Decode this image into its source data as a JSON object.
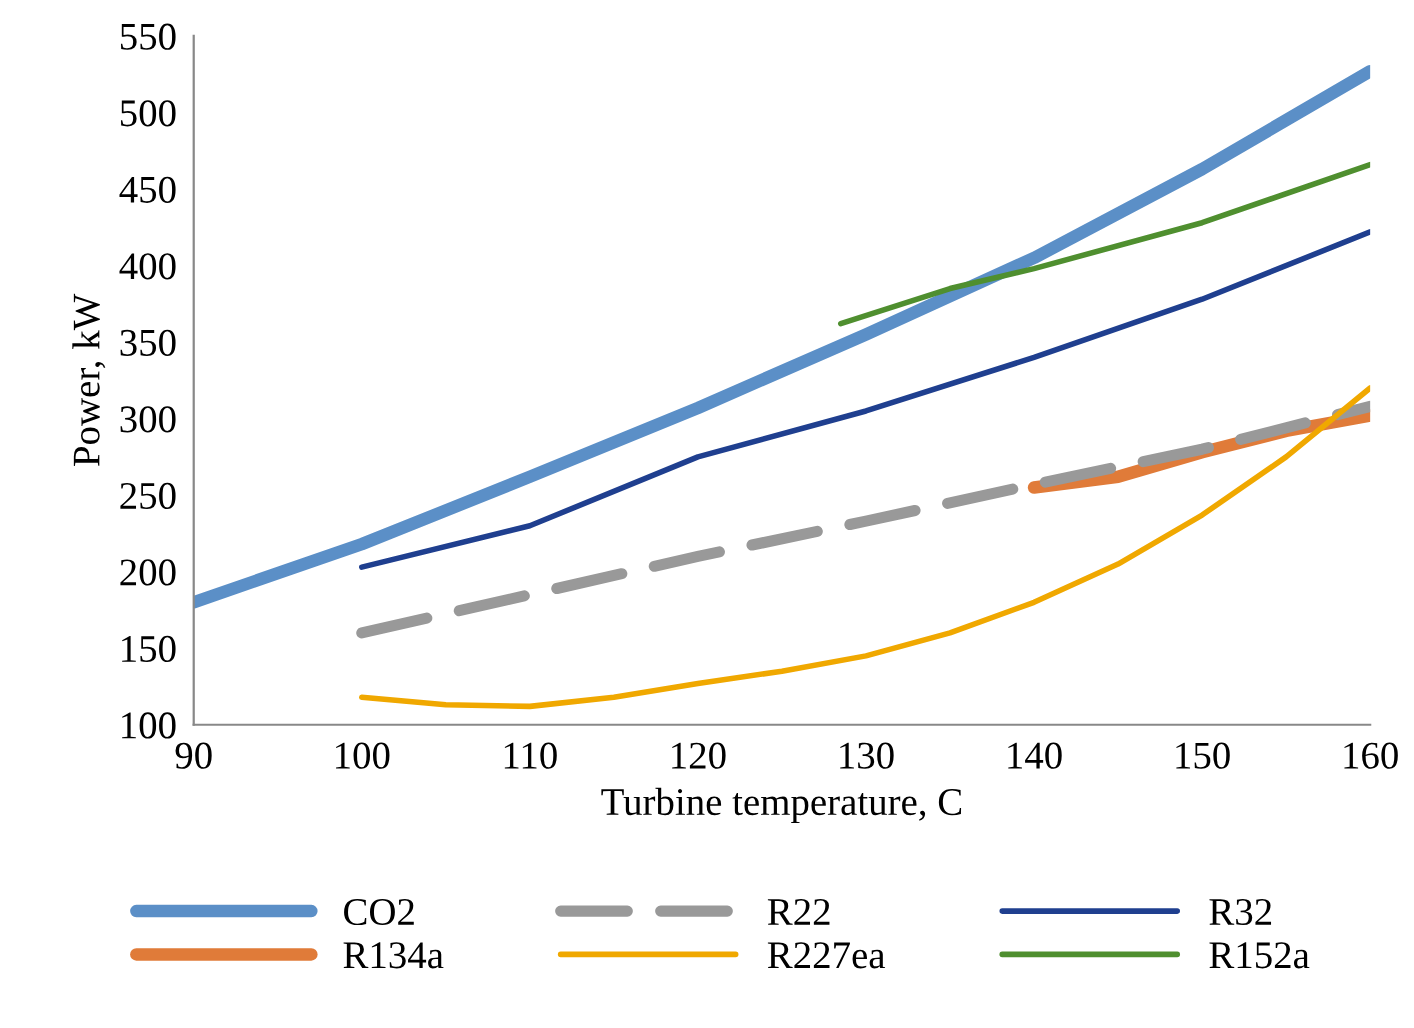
{
  "chart_data": {
    "type": "line",
    "xlabel": "Turbine temperature, C",
    "ylabel": "Power, kW",
    "xlim": [
      90,
      160
    ],
    "xticks": [
      90,
      100,
      110,
      120,
      130,
      140,
      150,
      160
    ],
    "ylim": [
      100,
      550
    ],
    "yticks": [
      100,
      150,
      200,
      250,
      300,
      350,
      400,
      450,
      500,
      550
    ],
    "grid": false,
    "legend": "bottom",
    "marker": "none",
    "series": [
      {
        "name": "CO2",
        "color": "#5b8fc7",
        "line_style": "solid",
        "x": [
          90,
          100,
          110,
          120,
          130,
          140,
          150,
          160
        ],
        "values": [
          180,
          218,
          262,
          307,
          355,
          405,
          463,
          527
        ]
      },
      {
        "name": "R134a",
        "color": "#e07b39",
        "line_style": "solid",
        "x": [
          140,
          145,
          150,
          155,
          160
        ],
        "values": [
          255,
          262,
          278,
          292,
          302
        ]
      },
      {
        "name": "R22",
        "color": "#999999",
        "line_style": "dashed",
        "x": [
          100,
          110,
          120,
          130,
          140,
          150,
          160
        ],
        "values": [
          160,
          185,
          210,
          233,
          257,
          280,
          308
        ]
      },
      {
        "name": "R227ea",
        "color": "#f0a800",
        "line_style": "solid",
        "x": [
          100,
          105,
          110,
          115,
          120,
          125,
          130,
          135,
          140,
          145,
          150,
          155,
          160
        ],
        "values": [
          118,
          113,
          112,
          118,
          127,
          135,
          145,
          160,
          180,
          205,
          237,
          275,
          320
        ]
      },
      {
        "name": "R32",
        "color": "#1f3f8f",
        "line_style": "solid",
        "x": [
          100,
          110,
          120,
          130,
          140,
          150,
          160
        ],
        "values": [
          203,
          230,
          275,
          305,
          340,
          378,
          422
        ]
      },
      {
        "name": "R152a",
        "color": "#4f8f2f",
        "line_style": "solid",
        "x": [
          128.5,
          135,
          140,
          150,
          160
        ],
        "values": [
          362,
          385,
          398,
          428,
          466
        ]
      }
    ]
  }
}
